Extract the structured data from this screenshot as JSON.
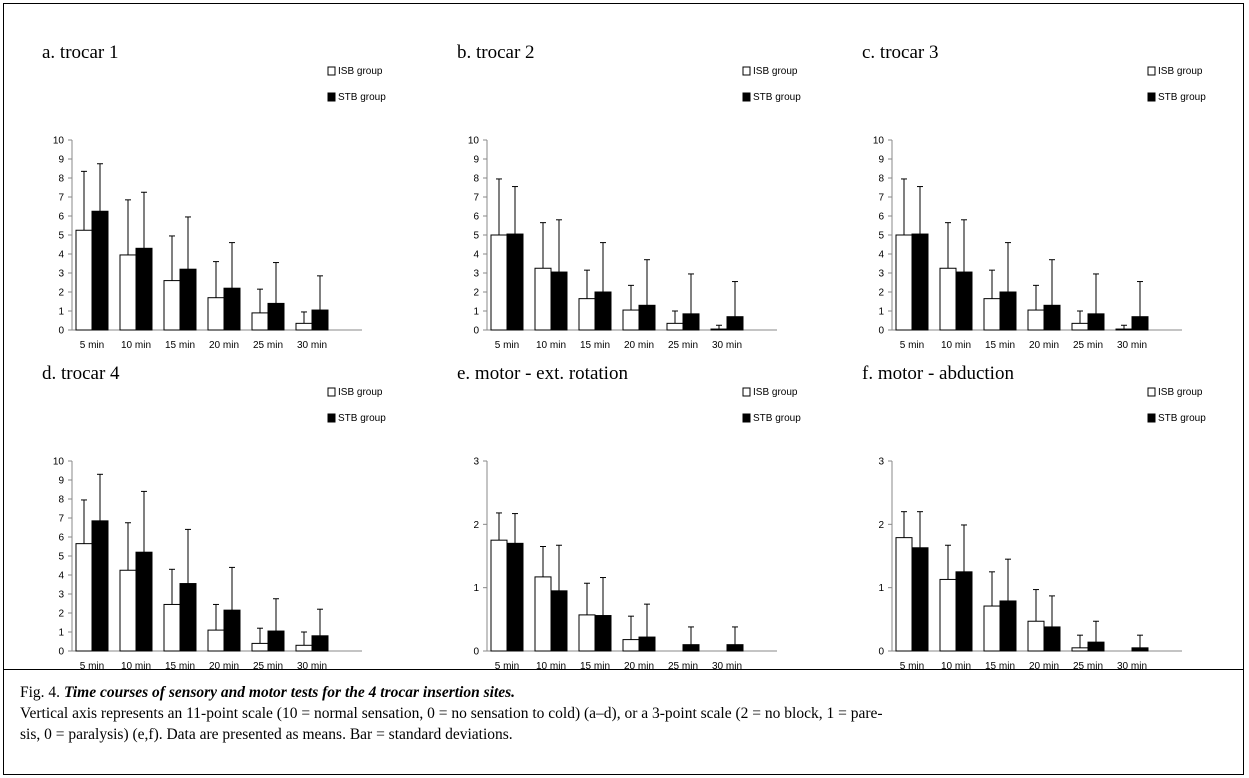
{
  "figure": {
    "caption": {
      "label": "Fig. 4.",
      "title": "Time courses of  sensory and motor tests for the 4 trocar insertion sites",
      "title_end": ".",
      "line2": "Vertical axis represents an 11-point scale (10 = normal sensation, 0 = no sensation to cold) (a–d), or a 3-point scale (2 = no block, 1 = pare-",
      "line3": "sis, 0 = paralysis) (e,f). Data are presented as means. Bar = standard deviations."
    }
  },
  "colors": {
    "isb": "#ffffff",
    "stb": "#000000",
    "stroke": "#000000",
    "axis": "#888888"
  },
  "chart_data": [
    {
      "type": "bar",
      "title": "a. trocar 1",
      "categories": [
        "5 min",
        "10 min",
        "15 min",
        "20 min",
        "25 min",
        "30 min"
      ],
      "ylim": [
        0,
        10
      ],
      "yticks": [
        "0",
        "1",
        "2",
        "3",
        "4",
        "5",
        "6",
        "7",
        "8",
        "9",
        "10"
      ],
      "legend": [
        "ISB group",
        "STB group"
      ],
      "legend_position": "top-right",
      "series": [
        {
          "name": "ISB group",
          "values": [
            5.25,
            3.95,
            2.6,
            1.7,
            0.9,
            0.35
          ],
          "sd": [
            3.1,
            2.9,
            2.35,
            1.9,
            1.25,
            0.6
          ]
        },
        {
          "name": "STB group",
          "values": [
            6.25,
            4.3,
            3.2,
            2.2,
            1.4,
            1.05
          ],
          "sd": [
            2.5,
            2.95,
            2.75,
            2.4,
            2.15,
            1.8
          ]
        }
      ]
    },
    {
      "type": "bar",
      "title": "b. trocar 2",
      "categories": [
        "5 min",
        "10 min",
        "15 min",
        "20 min",
        "25 min",
        "30 min"
      ],
      "ylim": [
        0,
        10
      ],
      "yticks": [
        "0",
        "1",
        "2",
        "3",
        "4",
        "5",
        "6",
        "7",
        "8",
        "9",
        "10"
      ],
      "legend": [
        "ISB group",
        "STB group"
      ],
      "legend_position": "top-right",
      "series": [
        {
          "name": "ISB group",
          "values": [
            5.0,
            3.25,
            1.65,
            1.05,
            0.35,
            0.05
          ],
          "sd": [
            2.95,
            2.4,
            1.5,
            1.3,
            0.65,
            0.2
          ]
        },
        {
          "name": "STB group",
          "values": [
            5.05,
            3.05,
            2.0,
            1.3,
            0.85,
            0.7
          ],
          "sd": [
            2.5,
            2.75,
            2.6,
            2.4,
            2.1,
            1.85
          ]
        }
      ]
    },
    {
      "type": "bar",
      "title": "c. trocar 3",
      "categories": [
        "5 min",
        "10 min",
        "15 min",
        "20 min",
        "25 min",
        "30 min"
      ],
      "ylim": [
        0,
        10
      ],
      "yticks": [
        "0",
        "1",
        "2",
        "3",
        "4",
        "5",
        "6",
        "7",
        "8",
        "9",
        "10"
      ],
      "legend": [
        "ISB group",
        "STB group"
      ],
      "legend_position": "top-right",
      "series": [
        {
          "name": "ISB group",
          "values": [
            5.0,
            3.25,
            1.65,
            1.05,
            0.35,
            0.05
          ],
          "sd": [
            2.95,
            2.4,
            1.5,
            1.3,
            0.65,
            0.2
          ]
        },
        {
          "name": "STB group",
          "values": [
            5.05,
            3.05,
            2.0,
            1.3,
            0.85,
            0.7
          ],
          "sd": [
            2.5,
            2.75,
            2.6,
            2.4,
            2.1,
            1.85
          ]
        }
      ]
    },
    {
      "type": "bar",
      "title": "d. trocar 4",
      "categories": [
        "5 min",
        "10 min",
        "15 min",
        "20 min",
        "25 min",
        "30 min"
      ],
      "ylim": [
        0,
        10
      ],
      "yticks": [
        "0",
        "1",
        "2",
        "3",
        "4",
        "5",
        "6",
        "7",
        "8",
        "9",
        "10"
      ],
      "legend": [
        "ISB group",
        "STB group"
      ],
      "legend_position": "top-right",
      "series": [
        {
          "name": "ISB group",
          "values": [
            5.65,
            4.25,
            2.45,
            1.1,
            0.4,
            0.3
          ],
          "sd": [
            2.3,
            2.5,
            1.85,
            1.35,
            0.8,
            0.7
          ]
        },
        {
          "name": "STB group",
          "values": [
            6.85,
            5.2,
            3.55,
            2.15,
            1.05,
            0.8
          ],
          "sd": [
            2.45,
            3.2,
            2.85,
            2.25,
            1.7,
            1.4
          ]
        }
      ]
    },
    {
      "type": "bar",
      "title": "e. motor - ext. rotation",
      "categories": [
        "5 min",
        "10 min",
        "15 min",
        "20 min",
        "25 min",
        "30 min"
      ],
      "ylim": [
        0,
        3
      ],
      "yticks": [
        "0",
        "1",
        "2",
        "3"
      ],
      "legend": [
        "ISB group",
        "STB group"
      ],
      "legend_position": "top-right",
      "series": [
        {
          "name": "ISB group",
          "values": [
            1.75,
            1.17,
            0.57,
            0.18,
            0.0,
            0.0
          ],
          "sd": [
            0.43,
            0.48,
            0.5,
            0.37,
            0.0,
            0.0
          ]
        },
        {
          "name": "STB group",
          "values": [
            1.7,
            0.95,
            0.56,
            0.22,
            0.1,
            0.1
          ],
          "sd": [
            0.47,
            0.72,
            0.6,
            0.52,
            0.28,
            0.28
          ]
        }
      ]
    },
    {
      "type": "bar",
      "title": "f. motor - abduction",
      "categories": [
        "5 min",
        "10 min",
        "15 min",
        "20 min",
        "25 min",
        "30 min"
      ],
      "ylim": [
        0,
        3
      ],
      "yticks": [
        "0",
        "1",
        "2",
        "3"
      ],
      "legend": [
        "ISB group",
        "STB group"
      ],
      "legend_position": "top-right",
      "series": [
        {
          "name": "ISB group",
          "values": [
            1.79,
            1.13,
            0.71,
            0.47,
            0.05,
            0.0
          ],
          "sd": [
            0.41,
            0.54,
            0.54,
            0.5,
            0.2,
            0.0
          ]
        },
        {
          "name": "STB group",
          "values": [
            1.63,
            1.25,
            0.79,
            0.38,
            0.14,
            0.05
          ],
          "sd": [
            0.57,
            0.74,
            0.66,
            0.49,
            0.33,
            0.2
          ]
        }
      ]
    }
  ]
}
